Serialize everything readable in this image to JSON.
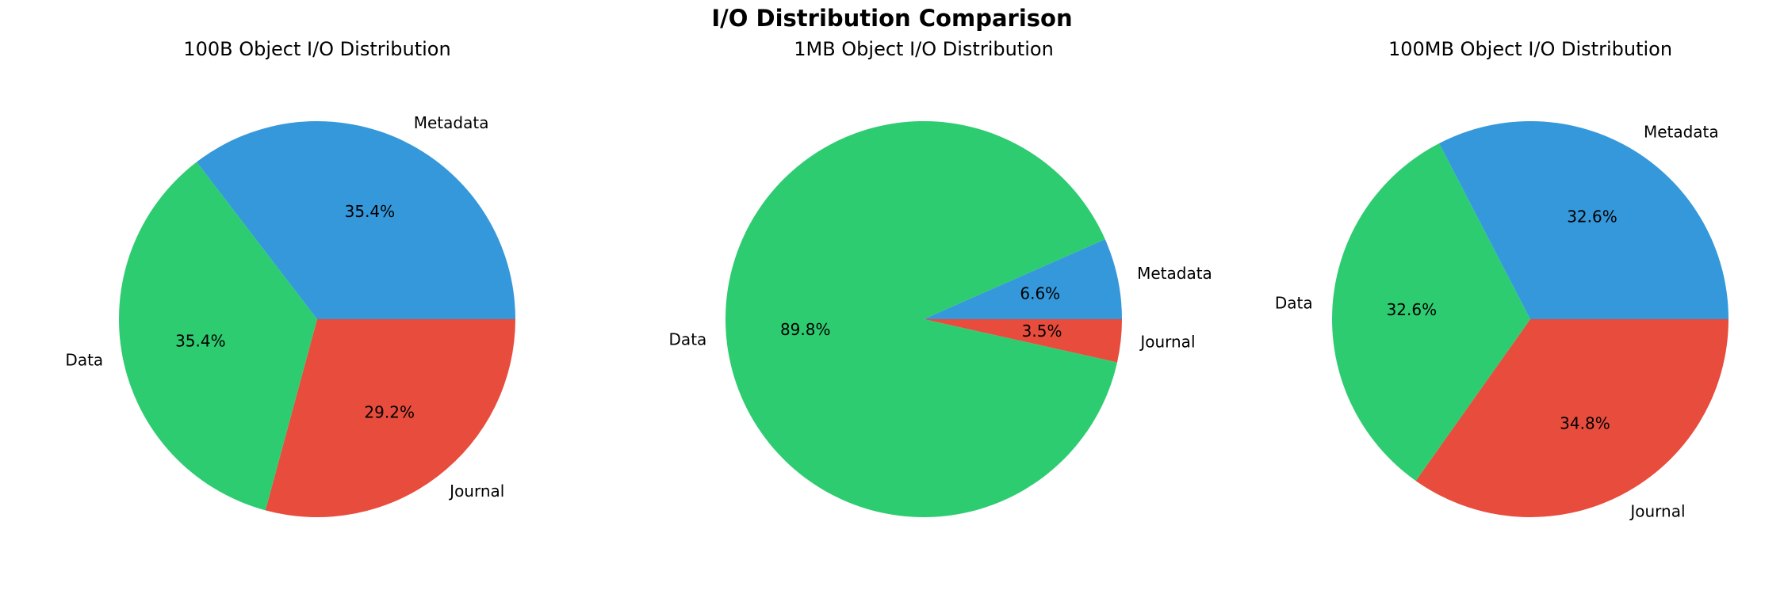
{
  "figure": {
    "title": "I/O Distribution Comparison"
  },
  "chart_data": [
    {
      "type": "pie",
      "title": "100B Object I/O Distribution",
      "labels": [
        "Journal",
        "Data",
        "Metadata"
      ],
      "values": [
        29.2,
        35.4,
        35.4
      ],
      "percent_labels": [
        "29.2%",
        "35.4%",
        "35.4%"
      ],
      "colors": [
        "#e74c3c",
        "#2ecc71",
        "#3498db"
      ],
      "start_angle_deg": 0,
      "direction": "clockwise"
    },
    {
      "type": "pie",
      "title": "1MB Object I/O Distribution",
      "labels": [
        "Journal",
        "Data",
        "Metadata"
      ],
      "values": [
        3.5,
        89.8,
        6.6
      ],
      "percent_labels": [
        "3.5%",
        "89.8%",
        "6.6%"
      ],
      "colors": [
        "#e74c3c",
        "#2ecc71",
        "#3498db"
      ],
      "start_angle_deg": 0,
      "direction": "clockwise"
    },
    {
      "type": "pie",
      "title": "100MB Object I/O Distribution",
      "labels": [
        "Journal",
        "Data",
        "Metadata"
      ],
      "values": [
        34.8,
        32.6,
        32.6
      ],
      "percent_labels": [
        "34.8%",
        "32.6%",
        "32.6%"
      ],
      "colors": [
        "#e74c3c",
        "#2ecc71",
        "#3498db"
      ],
      "start_angle_deg": 0,
      "direction": "clockwise"
    }
  ]
}
